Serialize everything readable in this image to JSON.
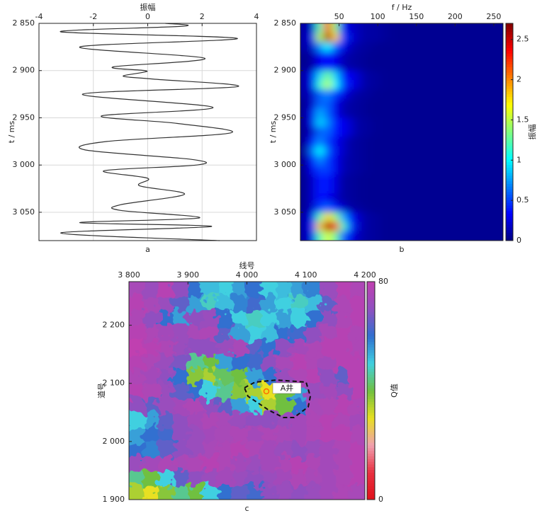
{
  "chart_data": [
    {
      "type": "line",
      "xlabel": "振幅",
      "ylabel": "t / ms",
      "caption": "a",
      "color": "#333333",
      "grid": true,
      "y_inverted": true,
      "xlim": [
        -4,
        4
      ],
      "xticks": [
        -4,
        -2,
        0,
        2,
        4
      ],
      "ylim": [
        2850,
        3080
      ],
      "yticks": [
        {
          "value": 2850,
          "label": "2 850"
        },
        {
          "value": 2900,
          "label": "2 900"
        },
        {
          "value": 2950,
          "label": "2 950"
        },
        {
          "value": 3000,
          "label": "3 000"
        },
        {
          "value": 3050,
          "label": "3 050"
        }
      ],
      "y": [
        2850,
        2853,
        2859,
        2866,
        2875,
        2887,
        2896,
        2900,
        2902,
        2906,
        2909,
        2917,
        2925,
        2939,
        2948,
        2956,
        2966,
        2975,
        2984,
        2994,
        3000,
        3006,
        3014,
        3022,
        3031,
        3042,
        3048,
        3056,
        3061,
        3065,
        3072,
        3080
      ],
      "values": [
        0.65,
        1.3,
        -3.2,
        3.3,
        -2.5,
        2.1,
        -1.25,
        -0.1,
        -0.2,
        -0.9,
        0.2,
        3.3,
        -2.4,
        2.4,
        -1.7,
        1.1,
        3.05,
        -1.5,
        -2.3,
        1.6,
        1.8,
        -1.6,
        0,
        -0.3,
        1.35,
        -1.0,
        -1.0,
        1.9,
        -2.5,
        2.35,
        -3.2,
        2.65
      ]
    },
    {
      "type": "heatmap",
      "xlabel": "f / Hz",
      "ylabel": "t / ms",
      "caption": "b",
      "colormap": "jet",
      "y_inverted": true,
      "xlim": [
        0,
        262
      ],
      "xticks": [
        50,
        100,
        150,
        200,
        250
      ],
      "ylim": [
        2850,
        3080
      ],
      "yticks": [
        {
          "value": 2850,
          "label": "2 850"
        },
        {
          "value": 2900,
          "label": "2 900"
        },
        {
          "value": 2950,
          "label": "2 950"
        },
        {
          "value": 3000,
          "label": "3 000"
        },
        {
          "value": 3050,
          "label": "3 050"
        }
      ],
      "colorbar": {
        "label": "振幅",
        "lim": [
          0,
          2.7
        ],
        "ticks": [
          0,
          0.5,
          1.0,
          1.5,
          2.0,
          2.5
        ]
      },
      "x_bins": [
        0,
        10,
        20,
        30,
        40,
        50,
        60,
        70,
        80,
        90,
        100,
        110,
        120,
        262
      ],
      "y_bins": [
        2850,
        2860,
        2870,
        2880,
        2890,
        2900,
        2910,
        2920,
        2930,
        2940,
        2950,
        2960,
        2970,
        2980,
        2990,
        3000,
        3010,
        3020,
        3030,
        3040,
        3050,
        3060,
        3070,
        3080
      ],
      "z": [
        [
          0.1,
          0.2,
          1.2,
          2.2,
          1.4,
          0.4,
          0.2,
          0.15,
          0.1,
          0.1,
          0.08,
          0.06,
          0.05
        ],
        [
          0.1,
          0.3,
          1.5,
          2.6,
          1.8,
          0.5,
          0.25,
          0.15,
          0.1,
          0.1,
          0.08,
          0.06,
          0.05
        ],
        [
          0.1,
          0.2,
          0.7,
          1.0,
          0.6,
          0.3,
          0.15,
          0.1,
          0.08,
          0.06,
          0.05,
          0.05,
          0.05
        ],
        [
          0.05,
          0.1,
          0.3,
          0.4,
          0.3,
          0.15,
          0.1,
          0.08,
          0.06,
          0.05,
          0.05,
          0.05,
          0.05
        ],
        [
          0.05,
          0.1,
          0.3,
          0.4,
          0.3,
          0.15,
          0.1,
          0.08,
          0.06,
          0.05,
          0.05,
          0.05,
          0.05
        ],
        [
          0.1,
          0.3,
          0.9,
          1.3,
          0.9,
          0.4,
          0.3,
          0.2,
          0.1,
          0.08,
          0.06,
          0.05,
          0.05
        ],
        [
          0.1,
          0.3,
          1.1,
          1.5,
          1.0,
          0.5,
          0.3,
          0.2,
          0.1,
          0.08,
          0.06,
          0.05,
          0.05
        ],
        [
          0.1,
          0.2,
          0.6,
          0.7,
          0.5,
          0.3,
          0.15,
          0.1,
          0.08,
          0.06,
          0.05,
          0.05,
          0.05
        ],
        [
          0.05,
          0.2,
          0.6,
          0.6,
          0.3,
          0.15,
          0.1,
          0.08,
          0.06,
          0.05,
          0.05,
          0.05,
          0.05
        ],
        [
          0.05,
          0.3,
          0.8,
          0.6,
          0.3,
          0.15,
          0.1,
          0.08,
          0.06,
          0.05,
          0.05,
          0.05,
          0.05
        ],
        [
          0.05,
          0.3,
          0.9,
          0.7,
          0.4,
          0.3,
          0.2,
          0.1,
          0.08,
          0.06,
          0.05,
          0.05,
          0.05
        ],
        [
          0.05,
          0.2,
          0.6,
          0.6,
          0.4,
          0.3,
          0.2,
          0.1,
          0.08,
          0.06,
          0.05,
          0.05,
          0.05
        ],
        [
          0.05,
          0.4,
          0.7,
          0.5,
          0.3,
          0.2,
          0.1,
          0.08,
          0.06,
          0.05,
          0.05,
          0.05,
          0.05
        ],
        [
          0.05,
          0.6,
          1.0,
          0.6,
          0.3,
          0.2,
          0.1,
          0.08,
          0.06,
          0.05,
          0.05,
          0.05,
          0.05
        ],
        [
          0.05,
          0.4,
          0.7,
          0.5,
          0.3,
          0.15,
          0.1,
          0.08,
          0.06,
          0.05,
          0.05,
          0.05,
          0.05
        ],
        [
          0.05,
          0.3,
          0.5,
          0.5,
          0.3,
          0.15,
          0.1,
          0.08,
          0.06,
          0.05,
          0.05,
          0.05,
          0.05
        ],
        [
          0.05,
          0.2,
          0.4,
          0.4,
          0.25,
          0.1,
          0.08,
          0.06,
          0.05,
          0.05,
          0.05,
          0.05,
          0.05
        ],
        [
          0.05,
          0.2,
          0.4,
          0.4,
          0.25,
          0.1,
          0.08,
          0.06,
          0.05,
          0.05,
          0.05,
          0.05,
          0.05
        ],
        [
          0.05,
          0.2,
          0.4,
          0.3,
          0.2,
          0.1,
          0.08,
          0.06,
          0.05,
          0.05,
          0.05,
          0.05,
          0.05
        ],
        [
          0.05,
          0.2,
          0.5,
          0.6,
          0.4,
          0.2,
          0.1,
          0.08,
          0.06,
          0.05,
          0.05,
          0.05,
          0.05
        ],
        [
          0.1,
          0.3,
          1.2,
          1.8,
          1.4,
          0.8,
          0.4,
          0.2,
          0.1,
          0.08,
          0.06,
          0.05,
          0.05
        ],
        [
          0.1,
          0.4,
          1.8,
          2.6,
          2.2,
          1.2,
          0.5,
          0.2,
          0.1,
          0.08,
          0.06,
          0.05,
          0.05
        ],
        [
          0.1,
          0.3,
          1.2,
          1.6,
          1.3,
          0.6,
          0.3,
          0.15,
          0.1,
          0.08,
          0.06,
          0.05,
          0.05
        ]
      ]
    },
    {
      "type": "heatmap",
      "xlabel": "线号",
      "ylabel": "道号",
      "caption": "c",
      "annotation": "A井",
      "colormap": [
        "#e0101a",
        "#e83040",
        "#f0a0b0",
        "#e8e020",
        "#70c040",
        "#40d0e0",
        "#3070d0",
        "#9050c0",
        "#c040b0"
      ],
      "xlim": [
        3800,
        4200
      ],
      "xticks": [
        {
          "value": 3800,
          "label": "3 800"
        },
        {
          "value": 3900,
          "label": "3 900"
        },
        {
          "value": 4000,
          "label": "4 000"
        },
        {
          "value": 4100,
          "label": "4 100"
        },
        {
          "value": 4200,
          "label": "4 200"
        }
      ],
      "ylim": [
        1900,
        2275
      ],
      "yticks": [
        {
          "value": 1900,
          "label": "1 900"
        },
        {
          "value": 2000,
          "label": "2 000"
        },
        {
          "value": 2100,
          "label": "2 100"
        },
        {
          "value": 2200,
          "label": "2 200"
        }
      ],
      "colorbar": {
        "label": "Q值",
        "lim": [
          0,
          80
        ],
        "ticks": [
          0,
          80
        ]
      },
      "x_bins": [
        3800,
        3825,
        3850,
        3875,
        3900,
        3925,
        3950,
        3975,
        4000,
        4025,
        4050,
        4075,
        4100,
        4125,
        4150,
        4175,
        4200
      ],
      "y_bins": [
        1900,
        1925,
        1950,
        1975,
        2000,
        2025,
        2050,
        2075,
        2100,
        2125,
        2150,
        2175,
        2200,
        2225,
        2250,
        2275
      ],
      "z": [
        [
          35,
          30,
          38,
          45,
          40,
          50,
          60,
          65,
          62,
          70,
          72,
          70,
          72,
          74,
          76,
          75
        ],
        [
          45,
          40,
          50,
          65,
          70,
          72,
          74,
          72,
          70,
          72,
          74,
          76,
          75,
          74,
          76,
          78
        ],
        [
          72,
          74,
          76,
          75,
          76,
          78,
          76,
          74,
          72,
          74,
          76,
          78,
          76,
          74,
          76,
          78
        ],
        [
          60,
          58,
          65,
          70,
          72,
          75,
          76,
          78,
          76,
          74,
          72,
          70,
          72,
          74,
          76,
          78
        ],
        [
          55,
          60,
          62,
          70,
          72,
          74,
          75,
          76,
          74,
          76,
          75,
          74,
          76,
          78,
          78,
          76
        ],
        [
          50,
          55,
          65,
          70,
          74,
          76,
          75,
          72,
          70,
          70,
          72,
          74,
          76,
          78,
          76,
          74
        ],
        [
          70,
          65,
          72,
          74,
          76,
          70,
          65,
          55,
          50,
          35,
          40,
          60,
          75,
          76,
          78,
          76
        ],
        [
          78,
          76,
          72,
          65,
          60,
          50,
          45,
          38,
          35,
          30,
          40,
          55,
          72,
          74,
          70,
          78
        ],
        [
          76,
          74,
          70,
          60,
          38,
          35,
          42,
          40,
          55,
          60,
          72,
          76,
          78,
          70,
          65,
          78
        ],
        [
          78,
          76,
          72,
          68,
          45,
          40,
          55,
          60,
          62,
          70,
          75,
          78,
          76,
          74,
          78,
          78
        ],
        [
          80,
          78,
          76,
          72,
          70,
          70,
          72,
          75,
          65,
          60,
          70,
          74,
          76,
          78,
          78,
          76
        ],
        [
          78,
          76,
          74,
          72,
          75,
          76,
          65,
          55,
          50,
          52,
          60,
          62,
          70,
          75,
          78,
          76
        ],
        [
          76,
          70,
          60,
          55,
          70,
          72,
          60,
          50,
          48,
          50,
          55,
          50,
          60,
          70,
          76,
          78
        ],
        [
          78,
          75,
          72,
          65,
          55,
          48,
          52,
          58,
          62,
          55,
          50,
          48,
          52,
          65,
          76,
          78
        ],
        [
          75,
          72,
          78,
          70,
          60,
          52,
          50,
          55,
          60,
          50,
          52,
          55,
          58,
          72,
          78,
          76
        ]
      ]
    }
  ]
}
